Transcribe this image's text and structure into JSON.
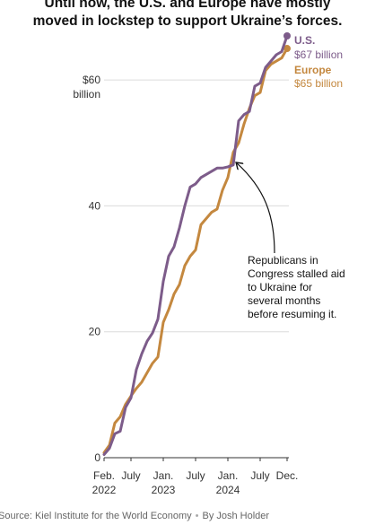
{
  "headline": {
    "line1": "Until now, the U.S. and Europe have mostly",
    "line2": "moved in lockstep to support Ukraine’s forces."
  },
  "source": {
    "text": "Source: Kiel Institute for the World Economy",
    "byline": "By Josh Holder"
  },
  "chart_data": {
    "type": "line",
    "xlim": [
      "2022-02",
      "2024-12"
    ],
    "ylim": [
      0,
      67
    ],
    "y_ticks": [
      {
        "value": 0,
        "label": "0"
      },
      {
        "value": 20,
        "label": "20"
      },
      {
        "value": 40,
        "label": "40"
      },
      {
        "value": 60,
        "label": "$60",
        "sublabel": "billion"
      }
    ],
    "x_ticks": [
      {
        "month": "2022-02",
        "label": "Feb.",
        "year": "2022"
      },
      {
        "month": "2022-07",
        "label": "July",
        "year": ""
      },
      {
        "month": "2023-01",
        "label": "Jan.",
        "year": "2023"
      },
      {
        "month": "2023-07",
        "label": "July",
        "year": ""
      },
      {
        "month": "2024-01",
        "label": "Jan.",
        "year": "2024"
      },
      {
        "month": "2024-07",
        "label": "July",
        "year": ""
      },
      {
        "month": "2024-12",
        "label": "Dec.",
        "year": ""
      }
    ],
    "grid": true,
    "series": [
      {
        "name": "U.S.",
        "label": "$67 billion",
        "color": "#7d5c8a",
        "x": [
          "2022-02",
          "2022-03",
          "2022-04",
          "2022-05",
          "2022-06",
          "2022-07",
          "2022-08",
          "2022-09",
          "2022-10",
          "2022-11",
          "2022-12",
          "2023-01",
          "2023-02",
          "2023-03",
          "2023-04",
          "2023-05",
          "2023-06",
          "2023-07",
          "2023-08",
          "2023-09",
          "2023-10",
          "2023-11",
          "2023-12",
          "2024-01",
          "2024-02",
          "2024-03",
          "2024-04",
          "2024-05",
          "2024-06",
          "2024-07",
          "2024-08",
          "2024-09",
          "2024-10",
          "2024-11",
          "2024-12"
        ],
        "values": [
          0.5,
          1.5,
          3.8,
          4.2,
          8.0,
          9.5,
          14.0,
          16.5,
          18.5,
          19.8,
          22.0,
          28.0,
          32.0,
          33.5,
          36.5,
          40.0,
          43.0,
          43.5,
          44.5,
          45.0,
          45.5,
          46.0,
          46.0,
          46.2,
          46.5,
          53.5,
          54.5,
          55.0,
          59.0,
          59.5,
          62.0,
          63.0,
          64.0,
          64.5,
          67.0
        ]
      },
      {
        "name": "Europe",
        "label": "$65 billion",
        "color": "#c4883f",
        "x": [
          "2022-02",
          "2022-03",
          "2022-04",
          "2022-05",
          "2022-06",
          "2022-07",
          "2022-08",
          "2022-09",
          "2022-10",
          "2022-11",
          "2022-12",
          "2023-01",
          "2023-02",
          "2023-03",
          "2023-04",
          "2023-05",
          "2023-06",
          "2023-07",
          "2023-08",
          "2023-09",
          "2023-10",
          "2023-11",
          "2023-12",
          "2024-01",
          "2024-02",
          "2024-03",
          "2024-04",
          "2024-05",
          "2024-06",
          "2024-07",
          "2024-08",
          "2024-09",
          "2024-10",
          "2024-11",
          "2024-12"
        ],
        "values": [
          0.8,
          2.0,
          5.5,
          6.5,
          8.5,
          9.8,
          11.0,
          12.0,
          13.5,
          15.0,
          16.0,
          21.5,
          23.5,
          26.0,
          27.5,
          30.5,
          32.0,
          33.0,
          37.0,
          38.0,
          39.0,
          39.5,
          42.5,
          44.5,
          48.5,
          50.0,
          53.0,
          55.5,
          57.5,
          58.0,
          61.5,
          62.5,
          63.0,
          63.5,
          65.0
        ]
      }
    ],
    "annotation": {
      "lines": [
        "Republicans in",
        "Congress stalled aid",
        "to Ukraine for",
        "several months",
        "before resuming it."
      ],
      "target_month": "2024-02",
      "target_value": 46.5
    }
  }
}
